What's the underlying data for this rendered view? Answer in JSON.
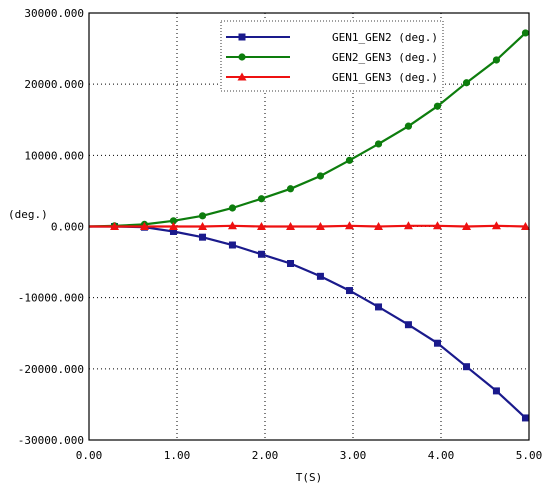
{
  "chart_data": {
    "type": "line",
    "title": "",
    "xlabel": "T(S)",
    "ylabel": "(deg.)",
    "xlim": [
      0,
      5
    ],
    "ylim": [
      -30000,
      30000
    ],
    "xticks": [
      0,
      1,
      2,
      3,
      4,
      5
    ],
    "xtick_labels": [
      "0.00",
      "1.00",
      "2.00",
      "3.00",
      "4.00",
      "5.00"
    ],
    "yticks": [
      30000,
      20000,
      10000,
      0,
      -10000,
      -20000,
      -30000
    ],
    "ytick_labels": [
      "30000.000",
      "20000.000",
      "10000.000",
      "0.000",
      "-10000.000",
      "-20000.000",
      "-30000.000"
    ],
    "grid": true,
    "legend_position": "top-right",
    "x": [
      0.29,
      0.63,
      0.96,
      1.29,
      1.63,
      1.96,
      2.29,
      2.63,
      2.96,
      3.29,
      3.63,
      3.96,
      4.29,
      4.63,
      4.96
    ],
    "series": [
      {
        "name": "GEN1_GEN2 (deg.)",
        "color": "#1a1a8c",
        "marker": "square",
        "values": [
          0,
          -100,
          -700,
          -1500,
          -2600,
          -3900,
          -5200,
          -7000,
          -9000,
          -11300,
          -13800,
          -16400,
          -19700,
          -23100,
          -26900
        ]
      },
      {
        "name": "GEN2_GEN3 (deg.)",
        "color": "#0d7d0d",
        "marker": "circle",
        "values": [
          100,
          300,
          800,
          1500,
          2600,
          3900,
          5300,
          7100,
          9300,
          11600,
          14100,
          16900,
          20200,
          23400,
          27200
        ]
      },
      {
        "name": "GEN1_GEN3 (deg.)",
        "color": "#ee1111",
        "marker": "triangle",
        "values": [
          0,
          0,
          0,
          0,
          100,
          0,
          0,
          0,
          100,
          0,
          100,
          100,
          0,
          100,
          0
        ]
      }
    ]
  }
}
